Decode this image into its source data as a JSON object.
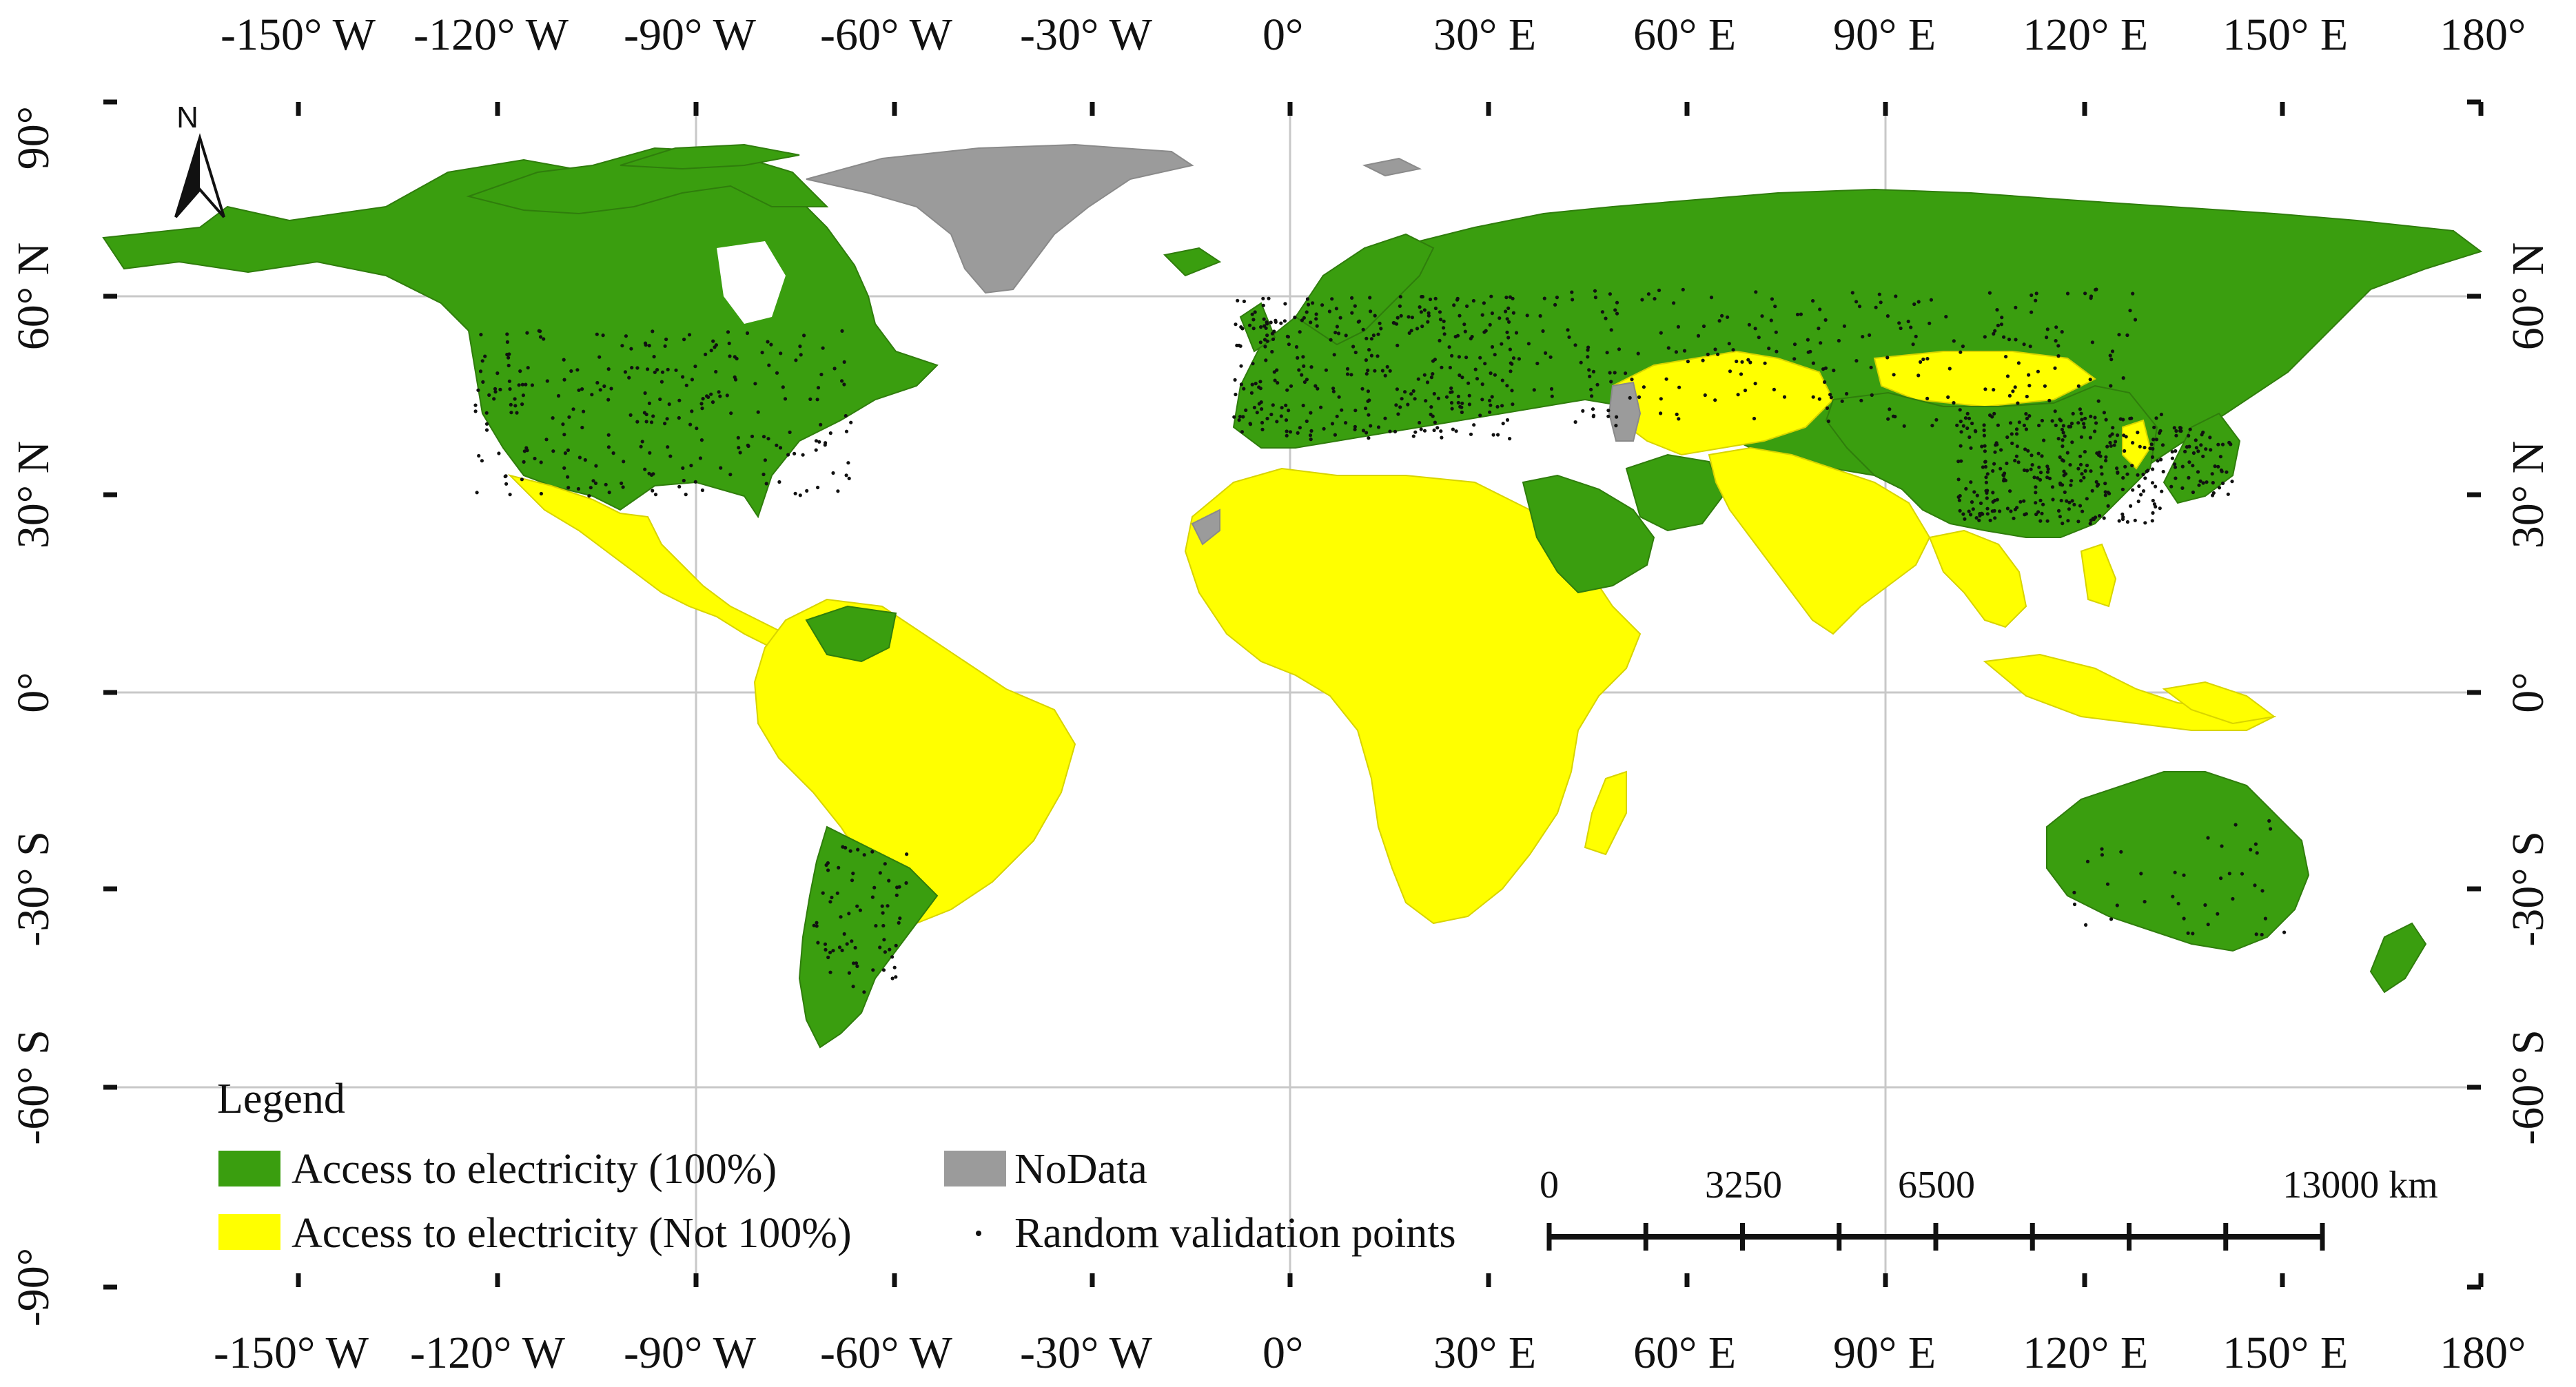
{
  "map": {
    "top_lon_labels": [
      "-150° W",
      "-120° W",
      "-90° W",
      "-60° W",
      "-30° W",
      "0°",
      "30° E",
      "60° E",
      "90° E",
      "120° E",
      "150° E",
      "180°"
    ],
    "bottom_lon_labels": [
      "-150° W",
      "-120° W",
      "-90° W",
      "-60° W",
      "-30° W",
      "0°",
      "30° E",
      "60° E",
      "90° E",
      "120° E",
      "150° E",
      "180°"
    ],
    "left_lat_labels": [
      "90°",
      "60° N",
      "30° N",
      "0°",
      "-30° S",
      "-60° S",
      "-90°"
    ],
    "right_lat_labels": [
      "60° N",
      "30° N",
      "0°",
      "-30° S",
      "-60° S"
    ],
    "north_arrow_label": "N"
  },
  "legend": {
    "title": "Legend",
    "items": [
      {
        "label": "Access to electricity (100%)",
        "color": "#3a9e0f"
      },
      {
        "label": "NoData",
        "color": "#9b9b9b"
      },
      {
        "label": "Access to electricity (Not 100%)",
        "color": "#ffff00"
      },
      {
        "label": "Random validation points",
        "color": "#111111"
      }
    ]
  },
  "scale_bar": {
    "labels": [
      "0",
      "3250",
      "6500",
      "13000 km"
    ]
  }
}
